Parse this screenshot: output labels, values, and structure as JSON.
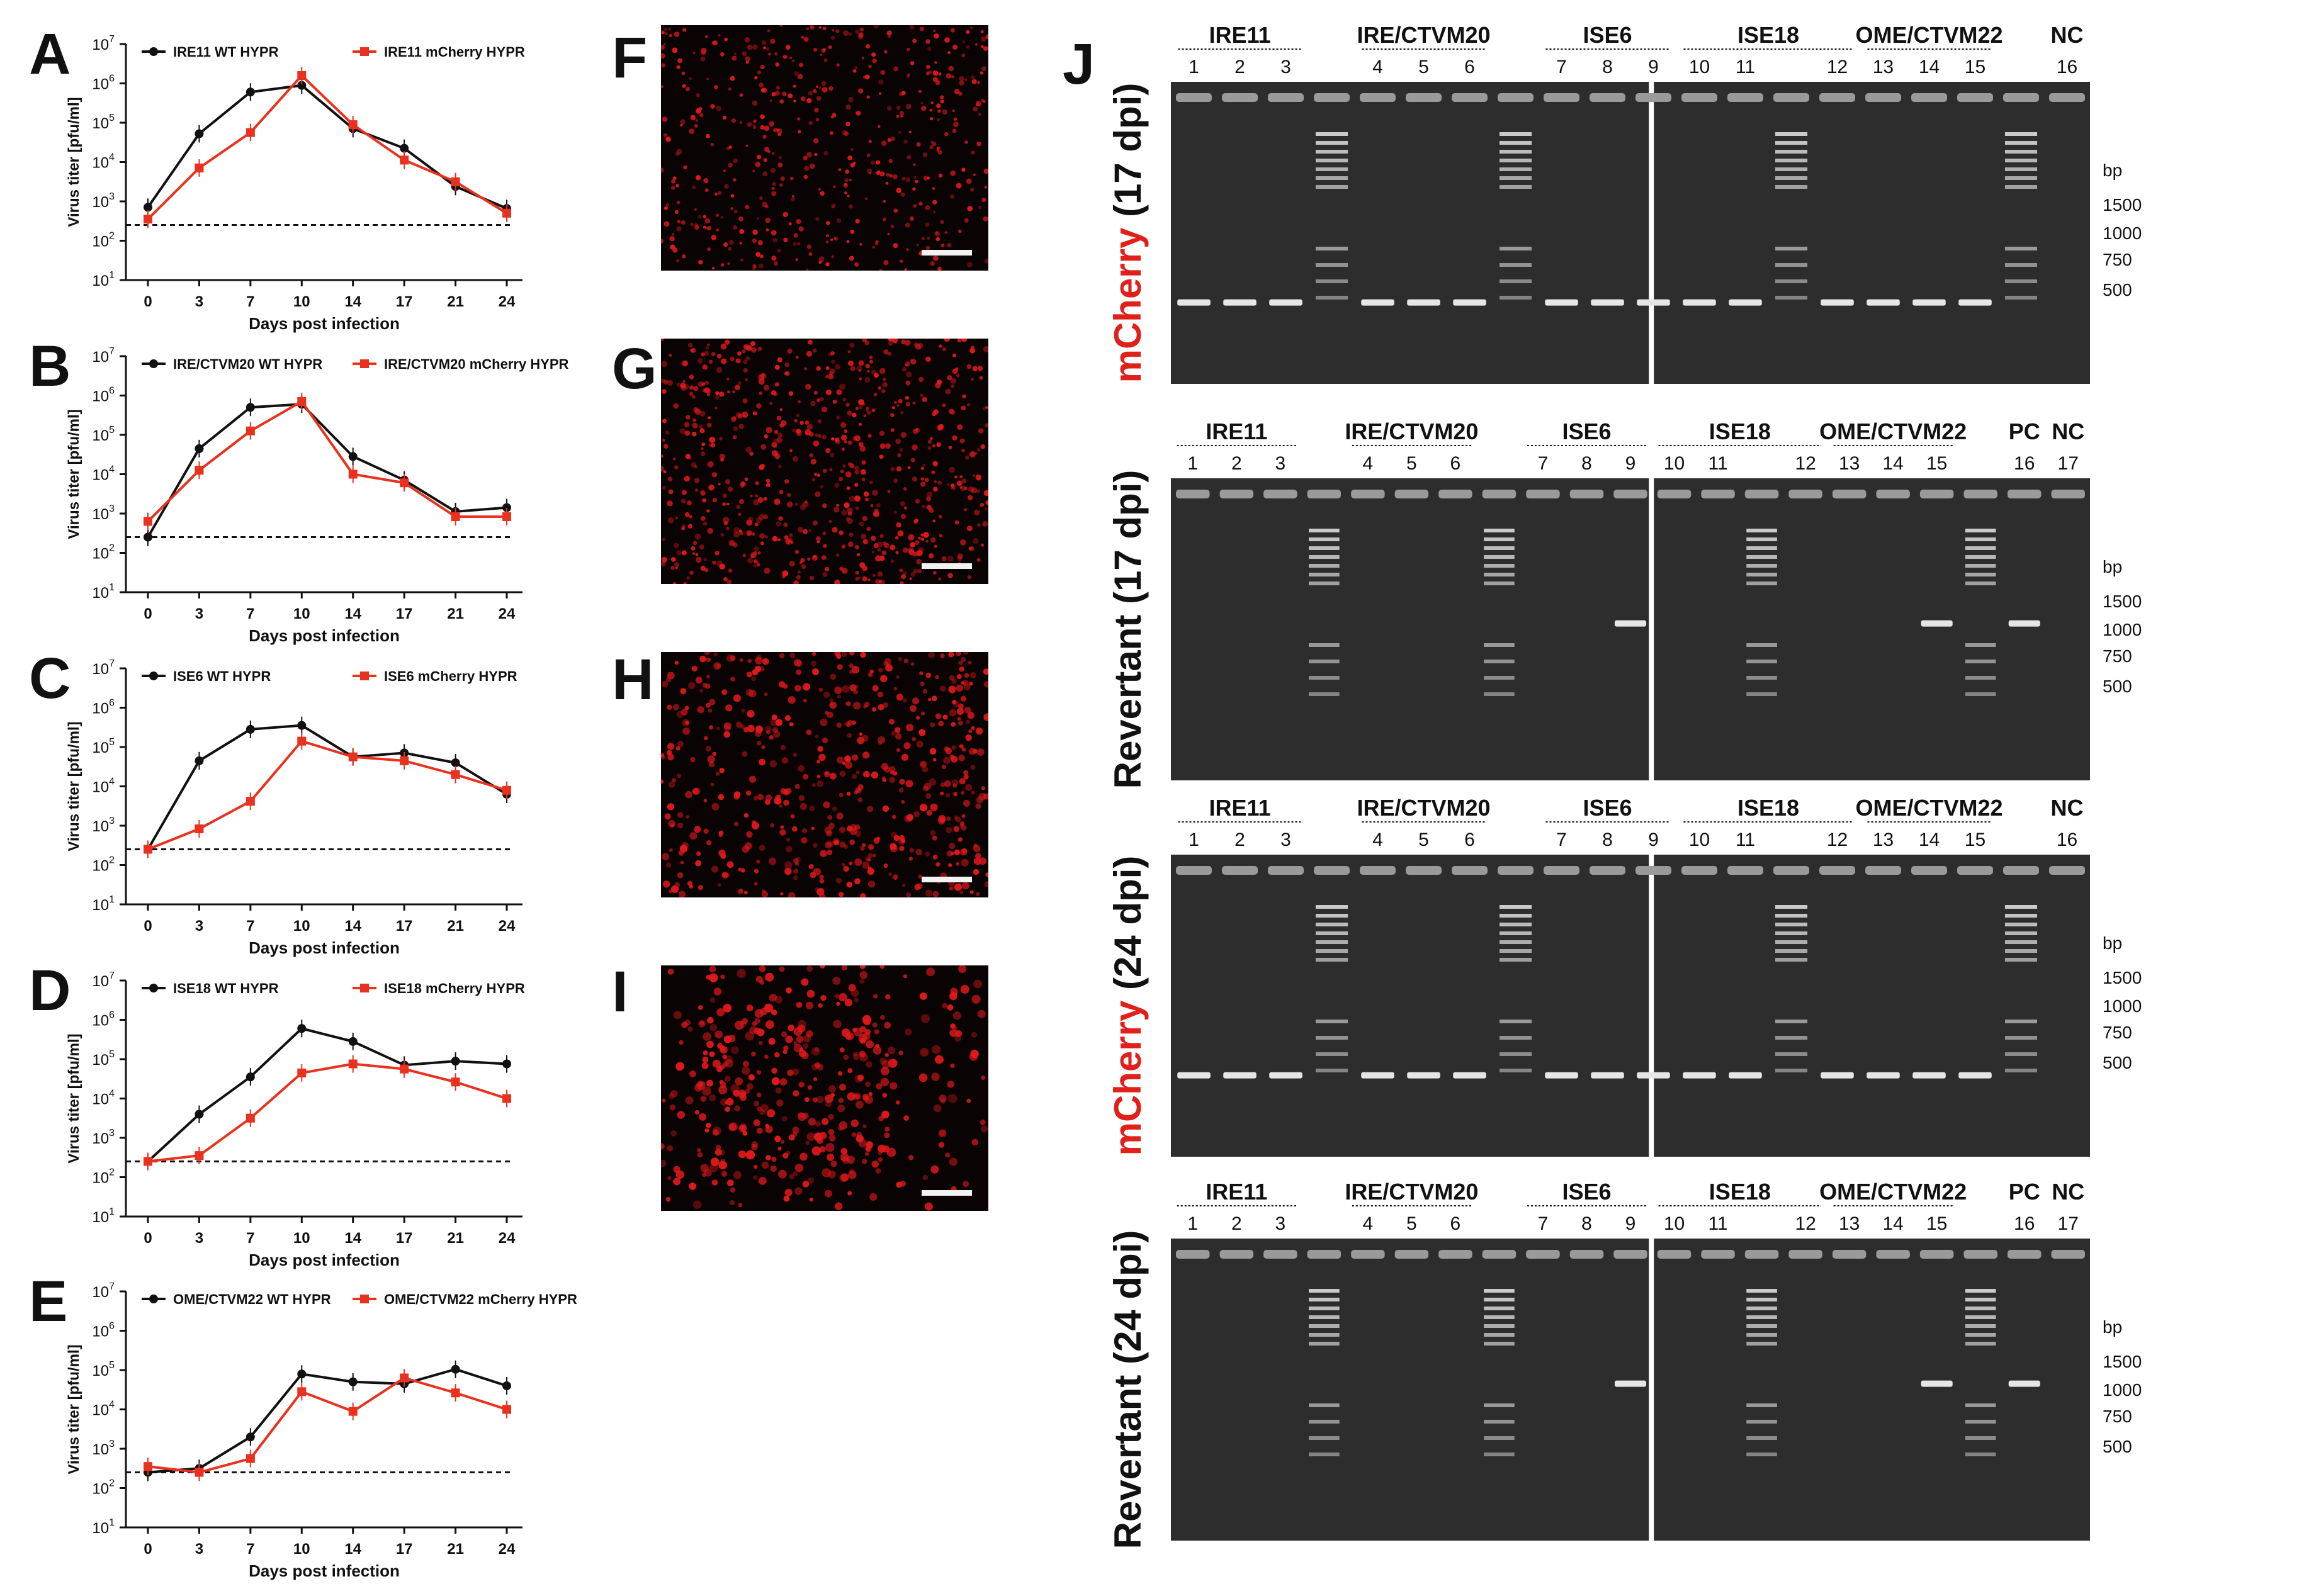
{
  "panels": {
    "A": "A",
    "B": "B",
    "C": "C",
    "D": "D",
    "E": "E",
    "F": "F",
    "G": "G",
    "H": "H",
    "I": "I",
    "J": "J"
  },
  "colors": {
    "wt": "#111111",
    "mcherry": "#e8321f",
    "gel_bg": "#2b2b2b",
    "micro_red": "#e0151a"
  },
  "chart_data": [
    {
      "type": "line",
      "panel": "A",
      "x": [
        0,
        3,
        7,
        10,
        14,
        17,
        21,
        24
      ],
      "ylabel": "Virus titer [pfu/ml]",
      "xlabel": "Days post infection",
      "ylim_log10": [
        1,
        7
      ],
      "yticks": [
        "10^1",
        "10^2",
        "10^3",
        "10^4",
        "10^5",
        "10^6",
        "10^7"
      ],
      "xticks": [
        "0",
        "3",
        "7",
        "10",
        "14",
        "17",
        "21",
        "24"
      ],
      "threshold_log10": 2.4,
      "series": [
        {
          "name": "IRE11 WT HYPR",
          "log10": [
            2.85,
            4.72,
            5.78,
            5.95,
            4.85,
            4.35,
            3.38,
            2.82
          ]
        },
        {
          "name": "IRE11 mCherry HYPR",
          "log10": [
            2.55,
            3.85,
            4.75,
            6.2,
            4.95,
            4.05,
            3.5,
            2.7
          ]
        }
      ]
    },
    {
      "type": "line",
      "panel": "B",
      "x": [
        0,
        3,
        7,
        10,
        14,
        17,
        21,
        24
      ],
      "ylabel": "Virus titer [pfu/ml]",
      "xlabel": "Days post infection",
      "ylim_log10": [
        1,
        7
      ],
      "yticks": [
        "10^1",
        "10^2",
        "10^3",
        "10^4",
        "10^5",
        "10^6",
        "10^7"
      ],
      "xticks": [
        "0",
        "3",
        "7",
        "10",
        "14",
        "17",
        "21",
        "24"
      ],
      "threshold_log10": 2.4,
      "series": [
        {
          "name": "IRE/CTVM20 WT HYPR",
          "log10": [
            2.4,
            4.65,
            5.7,
            5.78,
            4.45,
            3.85,
            3.05,
            3.15
          ]
        },
        {
          "name": "IRE/CTVM20 mCherry HYPR",
          "log10": [
            2.8,
            4.1,
            5.1,
            5.85,
            4.0,
            3.78,
            2.92,
            2.92
          ]
        }
      ]
    },
    {
      "type": "line",
      "panel": "C",
      "x": [
        0,
        3,
        7,
        10,
        14,
        17,
        21,
        24
      ],
      "ylabel": "Virus titer [pfu/ml]",
      "xlabel": "Days post infection",
      "ylim_log10": [
        1,
        7
      ],
      "yticks": [
        "10^1",
        "10^2",
        "10^3",
        "10^4",
        "10^5",
        "10^6",
        "10^7"
      ],
      "xticks": [
        "0",
        "3",
        "7",
        "10",
        "14",
        "17",
        "21",
        "24"
      ],
      "threshold_log10": 2.4,
      "series": [
        {
          "name": "ISE6 WT HYPR",
          "log10": [
            2.4,
            4.65,
            5.45,
            5.55,
            4.75,
            4.85,
            4.6,
            3.8
          ]
        },
        {
          "name": "ISE6 mCherry HYPR",
          "log10": [
            2.4,
            2.92,
            3.62,
            5.15,
            4.75,
            4.65,
            4.3,
            3.9
          ]
        }
      ]
    },
    {
      "type": "line",
      "panel": "D",
      "x": [
        0,
        3,
        7,
        10,
        14,
        17,
        21,
        24
      ],
      "ylabel": "Virus titer [pfu/ml]",
      "xlabel": "Days post infection",
      "ylim_log10": [
        1,
        7
      ],
      "yticks": [
        "10^1",
        "10^2",
        "10^3",
        "10^4",
        "10^5",
        "10^6",
        "10^7"
      ],
      "xticks": [
        "0",
        "3",
        "7",
        "10",
        "14",
        "17",
        "21",
        "24"
      ],
      "threshold_log10": 2.4,
      "series": [
        {
          "name": "ISE18 WT HYPR",
          "log10": [
            2.4,
            3.6,
            4.55,
            5.78,
            5.45,
            4.85,
            4.95,
            4.88
          ]
        },
        {
          "name": "ISE18 mCherry HYPR",
          "log10": [
            2.4,
            2.55,
            3.5,
            4.65,
            4.88,
            4.75,
            4.42,
            4.0
          ]
        }
      ]
    },
    {
      "type": "line",
      "panel": "E",
      "x": [
        0,
        3,
        7,
        10,
        14,
        17,
        21,
        24
      ],
      "ylabel": "Virus titer [pfu/ml]",
      "xlabel": "Days post infection",
      "ylim_log10": [
        1,
        7
      ],
      "yticks": [
        "10^1",
        "10^2",
        "10^3",
        "10^4",
        "10^5",
        "10^6",
        "10^7"
      ],
      "xticks": [
        "0",
        "3",
        "7",
        "10",
        "14",
        "17",
        "21",
        "24"
      ],
      "threshold_log10": 2.4,
      "series": [
        {
          "name": "OME/CTVM22 WT HYPR",
          "log10": [
            2.4,
            2.5,
            3.3,
            4.9,
            4.7,
            4.65,
            5.02,
            4.6
          ]
        },
        {
          "name": "OME/CTVM22 mCherry HYPR",
          "log10": [
            2.55,
            2.4,
            2.75,
            4.45,
            3.95,
            4.8,
            4.42,
            4.0
          ]
        }
      ]
    }
  ],
  "gels": [
    {
      "title": "mCherry (17 dpi)",
      "title_prefix": "mCherry",
      "title_suffix": " (17 dpi)",
      "prefix_red": true,
      "groups": [
        "IRE11",
        "IRE/CTVM20",
        "ISE6",
        "ISE18",
        "OME/CTVM22",
        "NC"
      ],
      "lanes": [
        "1",
        "2",
        "3",
        "4",
        "5",
        "6",
        "7",
        "8",
        "9",
        "10",
        "11",
        "12",
        "13",
        "14",
        "15",
        "16"
      ],
      "bp": [
        "bp",
        "1500",
        "1000",
        "750",
        "500"
      ]
    },
    {
      "title": "Revertant (17 dpi)",
      "title_prefix": "Revertant",
      "title_suffix": " (17 dpi)",
      "prefix_red": false,
      "groups": [
        "IRE11",
        "IRE/CTVM20",
        "ISE6",
        "ISE18",
        "OME/CTVM22",
        "PC",
        "NC"
      ],
      "lanes": [
        "1",
        "2",
        "3",
        "4",
        "5",
        "6",
        "7",
        "8",
        "9",
        "10",
        "11",
        "12",
        "13",
        "14",
        "15",
        "16",
        "17"
      ],
      "bp": [
        "bp",
        "1500",
        "1000",
        "750",
        "500"
      ]
    },
    {
      "title": "mCherry (24 dpi)",
      "title_prefix": "mCherry",
      "title_suffix": " (24 dpi)",
      "prefix_red": true,
      "groups": [
        "IRE11",
        "IRE/CTVM20",
        "ISE6",
        "ISE18",
        "OME/CTVM22",
        "NC"
      ],
      "lanes": [
        "1",
        "2",
        "3",
        "4",
        "5",
        "6",
        "7",
        "8",
        "9",
        "10",
        "11",
        "12",
        "13",
        "14",
        "15",
        "16"
      ],
      "bp": [
        "bp",
        "1500",
        "1000",
        "750",
        "500"
      ]
    },
    {
      "title": "Revertant (24 dpi)",
      "title_prefix": "Revertant",
      "title_suffix": " (24 dpi)",
      "prefix_red": false,
      "groups": [
        "IRE11",
        "IRE/CTVM20",
        "ISE6",
        "ISE18",
        "OME/CTVM22",
        "PC",
        "NC"
      ],
      "lanes": [
        "1",
        "2",
        "3",
        "4",
        "5",
        "6",
        "7",
        "8",
        "9",
        "10",
        "11",
        "12",
        "13",
        "14",
        "15",
        "16",
        "17"
      ],
      "bp": [
        "bp",
        "1500",
        "1000",
        "750",
        "500"
      ]
    }
  ]
}
